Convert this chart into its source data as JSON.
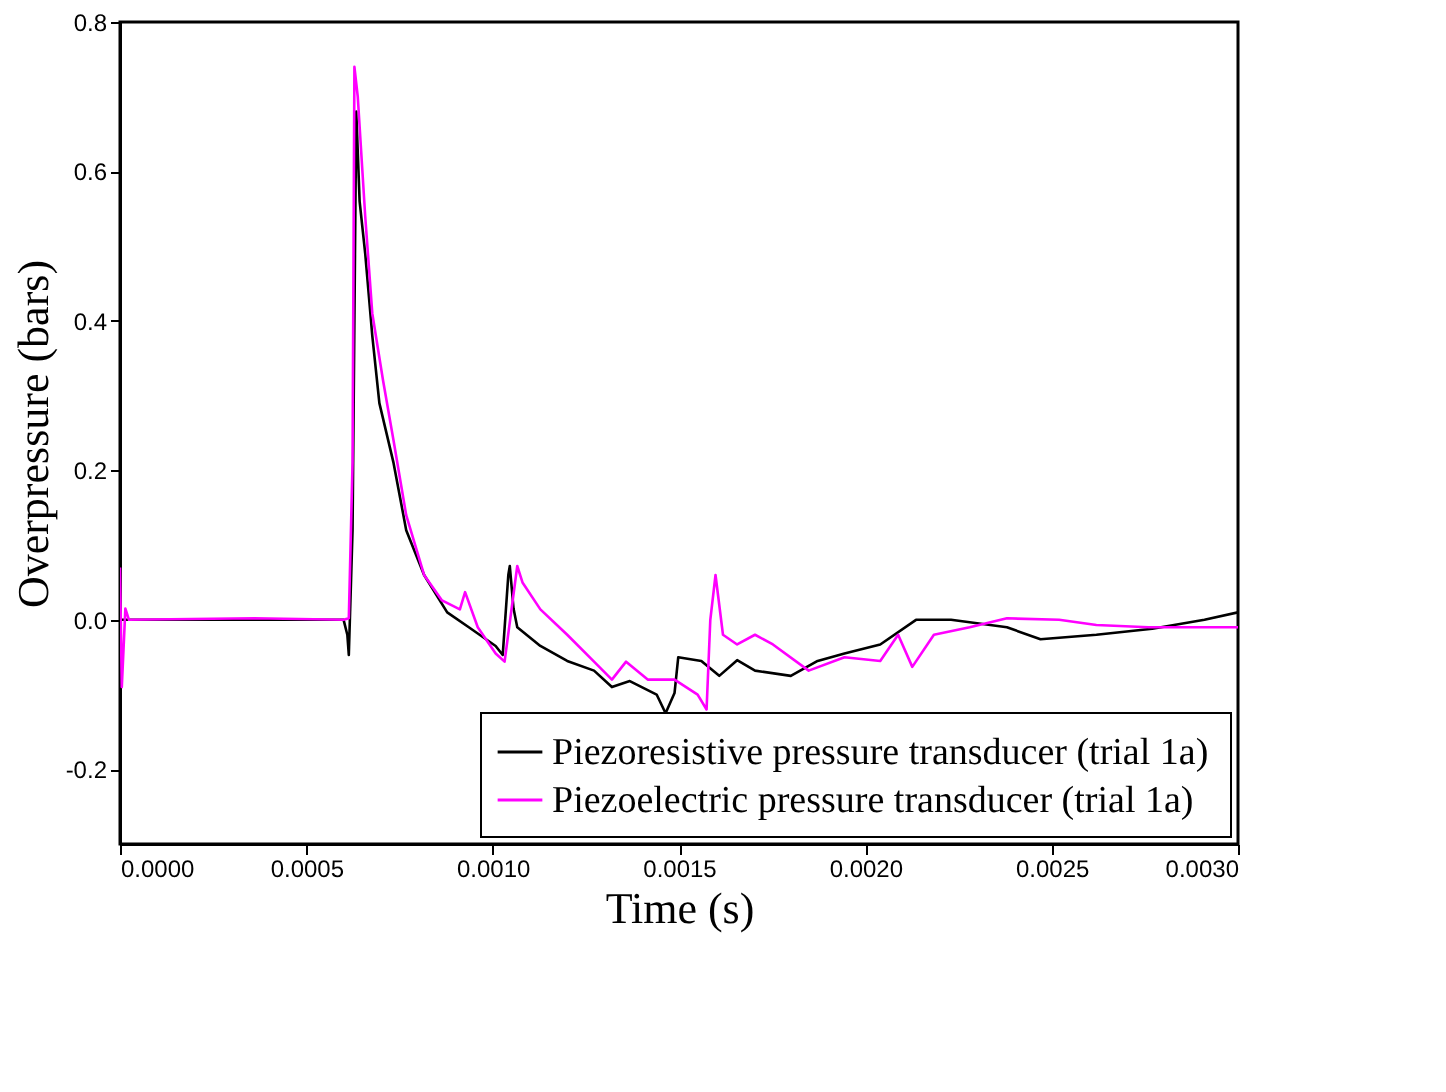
{
  "chart_data": {
    "type": "line",
    "xlabel": "Time (s)",
    "ylabel": "Overpressure (bars)",
    "xlim": [
      0,
      0.003
    ],
    "ylim": [
      -0.3,
      0.8
    ],
    "xticks": [
      {
        "value": 0,
        "label": "0.0000"
      },
      {
        "value": 0.0005,
        "label": "0.0005"
      },
      {
        "value": 0.001,
        "label": "0.0010"
      },
      {
        "value": 0.0015,
        "label": "0.0015"
      },
      {
        "value": 0.002,
        "label": "0.0020"
      },
      {
        "value": 0.0025,
        "label": "0.0025"
      },
      {
        "value": 0.003,
        "label": "0.0030"
      }
    ],
    "yticks": [
      -0.2,
      {
        "value": 0,
        "label": "0.0"
      },
      0.2,
      0.4,
      0.6,
      0.8
    ],
    "grid": false,
    "legend": "bottom right",
    "marker": "none",
    "line_style": "solid",
    "series": [
      {
        "name": "Piezoresistive pressure transducer (trial 1a)",
        "color": "#000000",
        "x": [
          0,
          0.00012,
          0.00036,
          0.0006,
          0.00061,
          0.000614,
          0.000624,
          0.000634,
          0.000643,
          0.000658,
          0.000677,
          0.000696,
          0.000734,
          0.000768,
          0.000816,
          0.000878,
          0.000936,
          0.001008,
          0.001027,
          0.001042,
          0.001046,
          0.001056,
          0.001066,
          0.001128,
          0.0012,
          0.001272,
          0.00132,
          0.001368,
          0.00144,
          0.001464,
          0.001488,
          0.001498,
          0.00156,
          0.001608,
          0.001656,
          0.001704,
          0.0018,
          0.001872,
          0.001944,
          0.00204,
          0.002136,
          0.00223,
          0.00238,
          0.00247,
          0.00262,
          0.00277,
          0.00291,
          0.003
        ],
        "values": [
          0,
          0,
          0,
          0,
          -0.02,
          -0.047,
          0.12,
          0.68,
          0.56,
          0.49,
          0.38,
          0.29,
          0.21,
          0.12,
          0.06,
          0.01,
          -0.01,
          -0.035,
          -0.047,
          0.06,
          0.072,
          0.015,
          -0.01,
          -0.035,
          -0.055,
          -0.068,
          -0.09,
          -0.082,
          -0.1,
          -0.125,
          -0.098,
          -0.05,
          -0.055,
          -0.075,
          -0.054,
          -0.068,
          -0.075,
          -0.055,
          -0.045,
          -0.033,
          0,
          0,
          -0.01,
          -0.026,
          -0.02,
          -0.012,
          0,
          0.01
        ]
      },
      {
        "name": "Piezoelectric pressure transducer   (trial 1a)",
        "color": "#ff00ff",
        "x": [
          0,
          4.8e-06,
          1.44e-05,
          2.4e-05,
          0.00036,
          0.0006,
          0.000614,
          0.000624,
          0.000629,
          0.000638,
          0.000658,
          0.000677,
          0.000706,
          0.000734,
          0.000768,
          0.000816,
          0.000864,
          0.000912,
          0.000926,
          0.00096,
          0.001008,
          0.001032,
          0.001066,
          0.00108,
          0.001128,
          0.0012,
          0.001272,
          0.00132,
          0.001358,
          0.001416,
          0.001488,
          0.00155,
          0.001574,
          0.001584,
          0.001598,
          0.001618,
          0.001656,
          0.001704,
          0.001752,
          0.001848,
          0.001944,
          0.00204,
          0.002088,
          0.002126,
          0.002184,
          0.00228,
          0.00238,
          0.00252,
          0.00262,
          0.00276,
          0.003
        ],
        "values": [
          0.07,
          -0.09,
          0.015,
          0,
          0.002,
          0,
          0.002,
          0.21,
          0.74,
          0.7,
          0.54,
          0.41,
          0.32,
          0.24,
          0.14,
          0.06,
          0.026,
          0.014,
          0.037,
          -0.01,
          -0.045,
          -0.056,
          0.072,
          0.05,
          0.014,
          -0.02,
          -0.056,
          -0.08,
          -0.056,
          -0.08,
          -0.08,
          -0.1,
          -0.12,
          0,
          0.06,
          -0.02,
          -0.033,
          -0.02,
          -0.033,
          -0.068,
          -0.05,
          -0.055,
          -0.02,
          -0.063,
          -0.02,
          -0.01,
          0.002,
          0,
          -0.007,
          -0.01,
          -0.01
        ]
      }
    ]
  }
}
